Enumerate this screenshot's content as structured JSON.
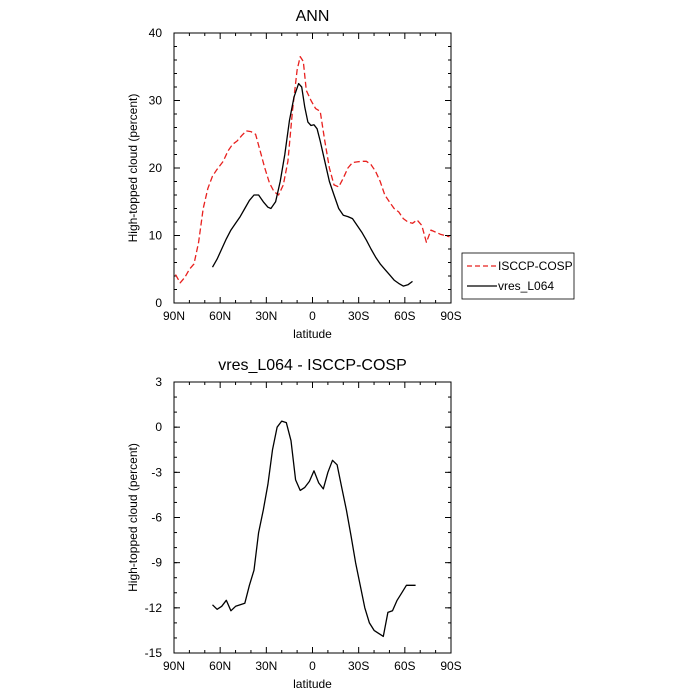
{
  "chart_data": [
    {
      "type": "line",
      "title": "ANN",
      "xlabel": "latitude",
      "ylabel": "High-topped cloud (percent)",
      "xlim": [
        -90,
        90
      ],
      "ylim": [
        0,
        40
      ],
      "xticks": [
        -90,
        -60,
        -30,
        0,
        30,
        60,
        90
      ],
      "xtick_labels": [
        "90N",
        "60N",
        "30N",
        "0",
        "30S",
        "60S",
        "90S"
      ],
      "yticks": [
        0,
        10,
        20,
        30,
        40
      ],
      "ytick_labels": [
        "0",
        "10",
        "20",
        "30",
        "40"
      ],
      "legend": {
        "position": "right",
        "entries": [
          "ISCCP-COSP",
          "vres_L064"
        ]
      },
      "series": [
        {
          "name": "ISCCP-COSP",
          "color": "#e8201e",
          "dash": "dashed",
          "x": [
            -89,
            -86,
            -83,
            -80,
            -77,
            -74,
            -71,
            -68,
            -65,
            -62,
            -58,
            -55,
            -52,
            -49,
            -46,
            -43,
            -40,
            -37,
            -34,
            -31,
            -28,
            -25,
            -22,
            -19,
            -16,
            -13,
            -10,
            -8,
            -6,
            -4,
            -1,
            2,
            5,
            8,
            11,
            14,
            17,
            20,
            23,
            26,
            29,
            32,
            35,
            38,
            41,
            44,
            47,
            50,
            53,
            56,
            59,
            62,
            65,
            68,
            71,
            74,
            77,
            80,
            83,
            86,
            89
          ],
          "values": [
            4.2,
            3.0,
            3.8,
            5.0,
            5.8,
            9.0,
            14.0,
            17.0,
            18.8,
            19.8,
            21.0,
            22.5,
            23.5,
            24.0,
            24.8,
            25.5,
            25.4,
            25.0,
            22.5,
            20.0,
            17.8,
            16.5,
            16.0,
            17.5,
            21.0,
            28.5,
            34.5,
            36.5,
            35.8,
            31.5,
            30.0,
            28.8,
            28.4,
            24.0,
            20.0,
            17.5,
            17.2,
            18.5,
            20.0,
            20.8,
            20.9,
            21.0,
            21.0,
            20.5,
            19.5,
            18.0,
            16.0,
            15.0,
            14.0,
            13.5,
            12.5,
            12.0,
            11.8,
            12.3,
            11.5,
            9.0,
            10.8,
            10.5,
            10.2,
            10.0,
            9.8
          ]
        },
        {
          "name": "vres_L064",
          "color": "#000000",
          "dash": "solid",
          "x": [
            -65,
            -62,
            -59,
            -56,
            -53,
            -50,
            -47,
            -44,
            -41,
            -38,
            -35,
            -32,
            -29,
            -27,
            -24,
            -21,
            -18,
            -15,
            -12,
            -9,
            -7,
            -5,
            -3,
            -1,
            1,
            3,
            5,
            8,
            11,
            14,
            17,
            20,
            23,
            26,
            29,
            32,
            35,
            38,
            41,
            44,
            47,
            50,
            53,
            56,
            59,
            62,
            65
          ],
          "values": [
            5.3,
            6.5,
            8.0,
            9.5,
            10.8,
            11.8,
            12.8,
            14.0,
            15.2,
            16.0,
            16.0,
            15.0,
            14.2,
            14.0,
            15.0,
            18.0,
            22.0,
            27.0,
            30.5,
            32.5,
            32.0,
            29.0,
            26.8,
            26.3,
            26.4,
            25.8,
            24.0,
            21.0,
            18.0,
            16.0,
            14.0,
            13.0,
            12.8,
            12.5,
            11.5,
            10.5,
            9.3,
            8.0,
            6.8,
            5.8,
            5.0,
            4.2,
            3.4,
            2.9,
            2.5,
            2.7,
            3.2
          ]
        }
      ]
    },
    {
      "type": "line",
      "title": "vres_L064 - ISCCP-COSP",
      "xlabel": "latitude",
      "ylabel": "High-topped cloud (percent)",
      "xlim": [
        -90,
        90
      ],
      "ylim": [
        -15,
        3
      ],
      "xticks": [
        -90,
        -60,
        -30,
        0,
        30,
        60,
        90
      ],
      "xtick_labels": [
        "90N",
        "60N",
        "30N",
        "0",
        "30S",
        "60S",
        "90S"
      ],
      "yticks": [
        -15,
        -12,
        -9,
        -6,
        -3,
        0,
        3
      ],
      "ytick_labels": [
        "-15",
        "-12",
        "-9",
        "-6",
        "-3",
        "0",
        "3"
      ],
      "series": [
        {
          "name": "vres_L064 - ISCCP-COSP",
          "color": "#000000",
          "dash": "solid",
          "x": [
            -65,
            -62,
            -59,
            -56,
            -53,
            -50,
            -47,
            -44,
            -41,
            -38,
            -35,
            -32,
            -29,
            -26,
            -23,
            -20,
            -17,
            -14,
            -11,
            -8,
            -5,
            -2,
            1,
            4,
            7,
            10,
            13,
            16,
            19,
            22,
            25,
            28,
            31,
            34,
            37,
            40,
            43,
            46,
            49,
            52,
            55,
            58,
            61,
            64,
            67
          ],
          "values": [
            -11.8,
            -12.1,
            -11.9,
            -11.5,
            -12.2,
            -11.9,
            -11.8,
            -11.7,
            -10.5,
            -9.5,
            -7.0,
            -5.5,
            -3.8,
            -1.5,
            0.0,
            0.4,
            0.3,
            -0.9,
            -3.5,
            -4.2,
            -4.0,
            -3.6,
            -2.9,
            -3.7,
            -4.1,
            -3.0,
            -2.2,
            -2.5,
            -4.0,
            -5.5,
            -7.2,
            -9.0,
            -10.5,
            -12.0,
            -13.0,
            -13.5,
            -13.7,
            -13.9,
            -12.3,
            -12.2,
            -11.5,
            -11.0,
            -10.5,
            -10.5,
            -10.5
          ]
        }
      ]
    }
  ]
}
